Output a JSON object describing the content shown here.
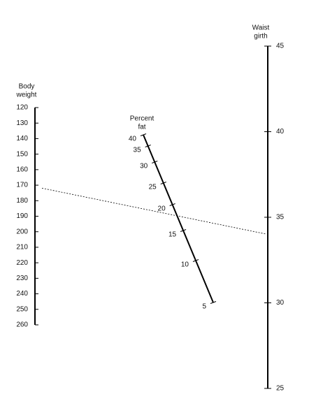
{
  "weight_scale": {
    "title": [
      "Body",
      "weight"
    ],
    "lim": [
      120,
      260
    ],
    "ticks": [
      120,
      130,
      140,
      150,
      160,
      170,
      180,
      190,
      200,
      210,
      220,
      230,
      240,
      250,
      260
    ]
  },
  "waist_scale": {
    "title": [
      "Waist",
      "girth"
    ],
    "lim": [
      25,
      45
    ],
    "ticks": [
      25,
      30,
      35,
      40,
      45
    ]
  },
  "fat_scale": {
    "title": [
      "Percent",
      "fat"
    ],
    "ticks": [
      40,
      35,
      30,
      25,
      20,
      15,
      10,
      5
    ]
  },
  "example_line": {
    "weight": 171,
    "waist": 34
  }
}
